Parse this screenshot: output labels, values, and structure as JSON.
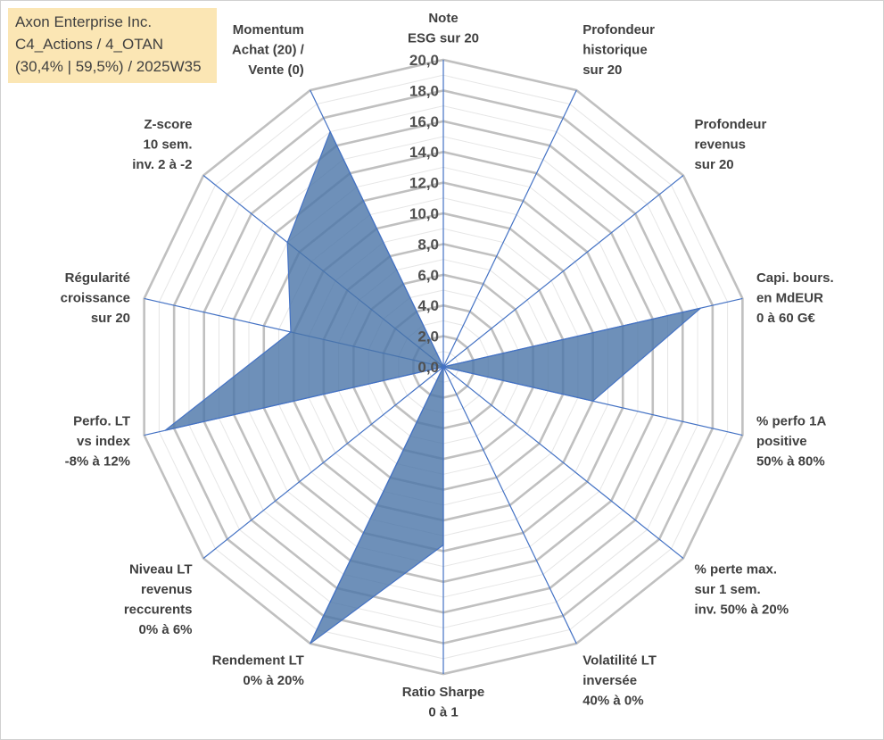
{
  "title_box": {
    "line1": "Axon Enterprise Inc.",
    "line2": "C4_Actions / 4_OTAN",
    "line3": "(30,4% | 59,5%) / 2025W35"
  },
  "colors": {
    "fill": "#4a74a8",
    "stroke": "#4472c4",
    "grid": "#c0c0c0",
    "spoke": "#4472c4",
    "title_bg": "#fbe6b4"
  },
  "chart_data": {
    "type": "radar",
    "title": "",
    "rmin": 0,
    "rmax": 20,
    "tick_step": 2,
    "tick_labels": [
      "0,0",
      "2,0",
      "4,0",
      "6,0",
      "8,0",
      "10,0",
      "12,0",
      "14,0",
      "16,0",
      "18,0",
      "20,0"
    ],
    "grid": true,
    "categories": [
      [
        "Note",
        "ESG sur 20"
      ],
      [
        "Profondeur",
        "historique",
        "sur 20"
      ],
      [
        "Profondeur",
        "revenus",
        "sur 20"
      ],
      [
        "Capi. bours.",
        "en MdEUR",
        "0 à 60 G€"
      ],
      [
        "% perfo 1A",
        "positive",
        "50% à 80%"
      ],
      [
        "% perte max.",
        "sur 1 sem.",
        "inv. 50% à 20%"
      ],
      [
        "Volatilité LT",
        "inversée",
        "40% à 0%"
      ],
      [
        "Ratio Sharpe",
        "0 à 1"
      ],
      [
        "Rendement LT",
        "0% à 20%"
      ],
      [
        "Niveau LT",
        "revenus",
        "reccurents",
        "0% à 6%"
      ],
      [
        "Perfo. LT",
        "vs index",
        "-8% à 12%"
      ],
      [
        "Régularité",
        "croissance",
        "sur 20"
      ],
      [
        "Z-score",
        "10 sem.",
        "inv. 2 à -2"
      ],
      [
        "Momentum",
        "Achat (20) /",
        "Vente (0)"
      ]
    ],
    "series": [
      {
        "values": [
          0.0,
          0.0,
          0.0,
          17.2,
          10.0,
          0.0,
          0.0,
          11.6,
          20.0,
          0.0,
          18.6,
          10.2,
          13.0,
          17.0
        ]
      }
    ]
  }
}
